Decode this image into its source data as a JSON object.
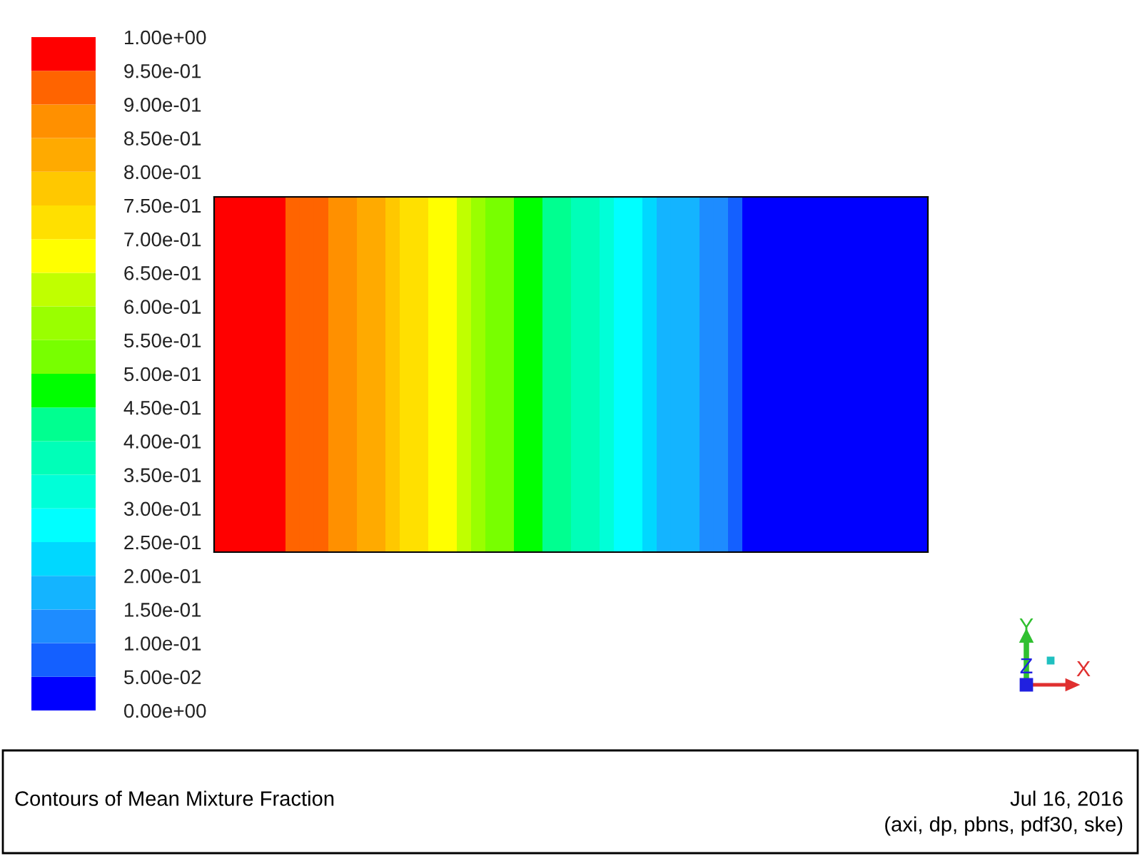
{
  "chart_data": {
    "type": "heatmap",
    "title": "Contours of Mean Mixture Fraction",
    "annotations": [
      "Jul 16, 2016",
      "(axi, dp, pbns, pdf30, ske)",
      "X",
      "Y",
      "Z"
    ],
    "categories": [
      null,
      null,
      null,
      null,
      null,
      null,
      null,
      null,
      null,
      null,
      null,
      null,
      null,
      null,
      null,
      null,
      null,
      null,
      null,
      null,
      null,
      null,
      null,
      null,
      null,
      null,
      null,
      null,
      null,
      null,
      null,
      null,
      null,
      null,
      null,
      null,
      null,
      null,
      null,
      null,
      null,
      null,
      null,
      null,
      null,
      null,
      null,
      null,
      null,
      null
    ],
    "y_categories": [
      null
    ],
    "cells": [
      [
        0.975,
        0.975,
        0.975,
        0.975,
        0.975,
        0.925,
        0.925,
        0.925,
        0.875,
        0.875,
        0.825,
        0.825,
        0.775,
        0.725,
        0.725,
        0.675,
        0.675,
        0.625,
        0.575,
        0.525,
        0.525,
        0.475,
        0.475,
        0.425,
        0.425,
        0.375,
        0.375,
        0.325,
        0.275,
        0.275,
        0.225,
        0.175,
        0.175,
        0.175,
        0.125,
        0.125,
        0.075,
        0.025,
        0.025,
        0.025,
        0.025,
        0.025,
        0.025,
        0.025,
        0.025,
        0.025,
        0.025,
        0.025,
        0.025,
        0.025
      ]
    ],
    "colors": [
      "#0000ff",
      "#1460ff",
      "#1e8cff",
      "#14b4ff",
      "#00d8ff",
      "#00ffff",
      "#00ffd8",
      "#00ffb8",
      "#00ff90",
      "#00ff00",
      "#78ff00",
      "#9aff00",
      "#c0ff00",
      "#ffff00",
      "#ffe000",
      "#ffc800",
      "#ffaa00",
      "#ff9000",
      "#ff6400",
      "#ff0000"
    ],
    "clim": [
      0,
      1
    ],
    "cticks": [
      {
        "value": 0,
        "label": "0.00e+00"
      },
      {
        "value": 0.05,
        "label": "5.00e-02"
      },
      {
        "value": 0.1,
        "label": "1.00e-01"
      },
      {
        "value": 0.15,
        "label": "1.50e-01"
      },
      {
        "value": 0.2,
        "label": "2.00e-01"
      },
      {
        "value": 0.25,
        "label": "2.50e-01"
      },
      {
        "value": 0.3,
        "label": "3.00e-01"
      },
      {
        "value": 0.35,
        "label": "3.50e-01"
      },
      {
        "value": 0.4,
        "label": "4.00e-01"
      },
      {
        "value": 0.45,
        "label": "4.50e-01"
      },
      {
        "value": 0.5,
        "label": "5.00e-01"
      },
      {
        "value": 0.55,
        "label": "5.50e-01"
      },
      {
        "value": 0.6,
        "label": "6.00e-01"
      },
      {
        "value": 0.65,
        "label": "6.50e-01"
      },
      {
        "value": 0.7,
        "label": "7.00e-01"
      },
      {
        "value": 0.75,
        "label": "7.50e-01"
      },
      {
        "value": 0.8,
        "label": "8.00e-01"
      },
      {
        "value": 0.85,
        "label": "8.50e-01"
      },
      {
        "value": 0.9,
        "label": "9.00e-01"
      },
      {
        "value": 0.95,
        "label": "9.50e-01"
      },
      {
        "value": 1,
        "label": "1.00e+00"
      }
    ]
  }
}
